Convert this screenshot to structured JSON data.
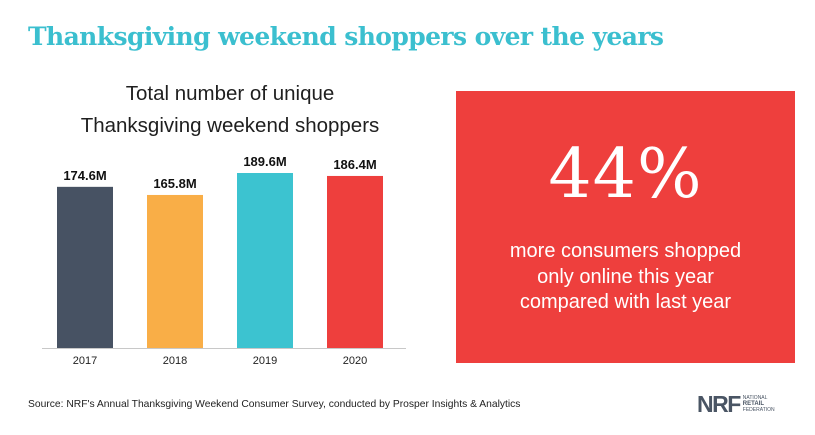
{
  "header": {
    "title": "Thanksgiving weekend shoppers over the years"
  },
  "chart_data": {
    "type": "bar",
    "title_lines": [
      "Total number of unique",
      "Thanksgiving weekend shoppers"
    ],
    "categories": [
      "2017",
      "2018",
      "2019",
      "2020"
    ],
    "values": [
      174.6,
      165.8,
      189.6,
      186.4
    ],
    "value_labels": [
      "174.6M",
      "165.8M",
      "189.6M",
      "186.4M"
    ],
    "colors": [
      "#475263",
      "#f9ae47",
      "#3cc3d0",
      "#ee3f3d"
    ],
    "ylim": [
      0,
      189.6
    ],
    "grid": false,
    "xlabel": "",
    "ylabel": ""
  },
  "stat": {
    "number": "44%",
    "lines": [
      "more consumers shopped",
      "only online this year",
      "compared with last year"
    ],
    "background": "#ee3f3d"
  },
  "footer": {
    "source": "Source: NRF's Annual Thanksgiving Weekend Consumer Survey, conducted by Prosper Insights & Analytics",
    "logo_mark": "NRF",
    "logo_lines": [
      "NATIONAL",
      "RETAIL",
      "FEDERATION"
    ]
  }
}
